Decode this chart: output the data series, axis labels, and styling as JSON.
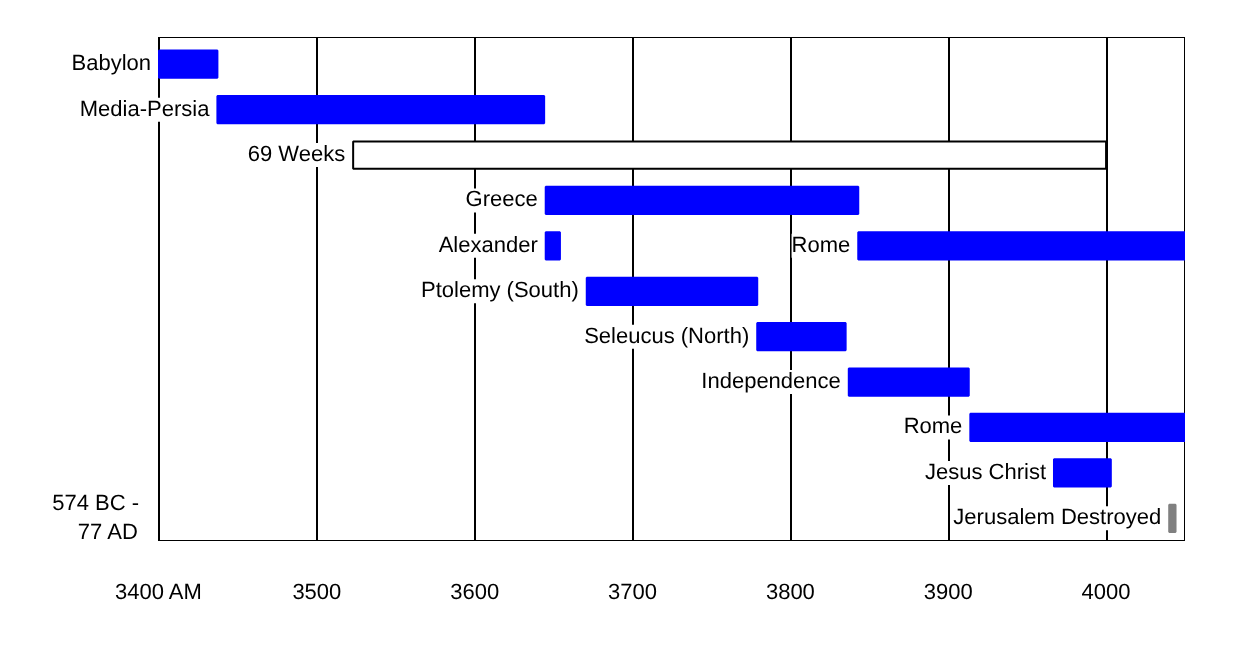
{
  "chart_data": {
    "type": "bar",
    "orientation": "horizontal",
    "categories": [
      "Babylon",
      "Media-Persia",
      "69 Weeks",
      "Greece",
      "Alexander",
      "Ptolemy (South)",
      "Seleucus (North)",
      "Independence",
      "Rome",
      "Jesus Christ",
      "Jerusalem Destroyed"
    ],
    "series": [
      {
        "colors": [
          "#0000ff",
          "#0000ff",
          "#ffffff",
          "#0000ff",
          "#0000ff",
          "#0000ff",
          "#0000ff",
          "#0000ff",
          "#0000ff",
          "#0000ff",
          "#808080"
        ],
        "base": [
          3400,
          3437,
          3523,
          3645,
          3645,
          3671,
          3779,
          3837,
          3914,
          3967,
          4040
        ],
        "values": [
          37,
          207,
          477,
          198,
          9,
          108,
          56,
          76,
          136,
          36,
          4
        ]
      },
      {
        "name": "Rome",
        "color": "#0000ff",
        "base": [
          null,
          null,
          null,
          null,
          3843,
          null,
          null,
          null,
          null,
          null,
          null
        ],
        "values": [
          null,
          null,
          null,
          null,
          207,
          null,
          null,
          null,
          null,
          null,
          null
        ]
      }
    ],
    "xlim": [
      3400,
      4050
    ],
    "xticks": [
      {
        "value": 3400,
        "label": "3400 AM"
      },
      3500,
      3600,
      3700,
      3800,
      3900,
      4000
    ],
    "grid": "x",
    "tick_labels": "x",
    "annotations": [
      "574 BC - 77 AD"
    ]
  }
}
